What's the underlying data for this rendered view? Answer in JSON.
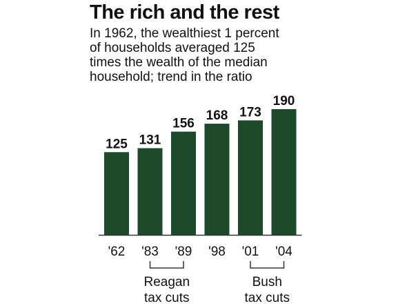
{
  "title": "The rich and the rest",
  "subtitle_lines": [
    "In 1962, the wealthiest 1 percent",
    "of households averaged 125",
    "times the wealth of the median",
    "household; trend in the ratio"
  ],
  "colors": {
    "bar": "#1c4a2b",
    "axis": "#333333",
    "bracket": "#333333"
  },
  "chart_data": {
    "type": "bar",
    "categories": [
      "'62",
      "'83",
      "'89",
      "'98",
      "'01",
      "'04"
    ],
    "values": [
      125,
      131,
      156,
      168,
      173,
      190
    ],
    "title": "The rich and the rest",
    "xlabel": "",
    "ylabel": "",
    "ylim": [
      0,
      190
    ],
    "grid": false,
    "annotations": [
      {
        "lines": [
          "Reagan",
          "tax cuts"
        ],
        "from_category": "'83",
        "to_category": "'89"
      },
      {
        "lines": [
          "Bush",
          "tax cuts"
        ],
        "from_category": "'01",
        "to_category": "'04"
      }
    ]
  }
}
